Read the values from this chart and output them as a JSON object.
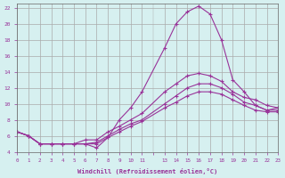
{
  "xlabel": "Windchill (Refroidissement éolien,°C)",
  "background_color": "#d6f0f0",
  "line_color": "#993399",
  "grid_color": "#aaaaaa",
  "xlim": [
    0,
    23
  ],
  "ylim": [
    4,
    22.5
  ],
  "xticks": [
    0,
    1,
    2,
    3,
    4,
    5,
    6,
    7,
    8,
    9,
    10,
    11,
    13,
    14,
    15,
    16,
    17,
    18,
    19,
    20,
    21,
    22,
    23
  ],
  "yticks": [
    4,
    6,
    8,
    10,
    12,
    14,
    16,
    18,
    20,
    22
  ],
  "curve1_x": [
    0,
    1,
    2,
    3,
    4,
    5,
    6,
    7,
    8,
    9,
    10,
    11,
    13,
    14,
    15,
    16,
    17,
    18,
    19,
    20,
    21,
    22,
    23
  ],
  "curve1_y": [
    6.5,
    6.0,
    5.0,
    5.0,
    5.0,
    5.0,
    5.0,
    4.5,
    5.8,
    8.0,
    9.5,
    11.5,
    17.0,
    20.0,
    21.5,
    22.2,
    21.2,
    18.0,
    13.0,
    11.5,
    9.8,
    9.2,
    9.5
  ],
  "curve2_x": [
    0,
    1,
    2,
    3,
    4,
    5,
    6,
    7,
    8,
    9,
    10,
    11,
    13,
    14,
    15,
    16,
    17,
    18,
    19,
    20,
    21,
    22,
    23
  ],
  "curve2_y": [
    6.5,
    6.0,
    5.0,
    5.0,
    5.0,
    5.0,
    5.5,
    5.5,
    6.5,
    7.2,
    8.0,
    8.8,
    11.5,
    12.5,
    13.5,
    13.8,
    13.5,
    12.8,
    11.5,
    10.8,
    10.5,
    9.8,
    9.5
  ],
  "curve3_x": [
    0,
    1,
    2,
    3,
    4,
    5,
    6,
    7,
    8,
    9,
    10,
    11,
    13,
    14,
    15,
    16,
    17,
    18,
    19,
    20,
    21,
    22,
    23
  ],
  "curve3_y": [
    6.5,
    6.0,
    5.0,
    5.0,
    5.0,
    5.0,
    5.0,
    5.2,
    6.0,
    6.8,
    7.5,
    8.0,
    10.0,
    11.0,
    12.0,
    12.5,
    12.5,
    12.0,
    11.2,
    10.2,
    9.8,
    9.2,
    9.2
  ],
  "curve4_x": [
    0,
    1,
    2,
    3,
    4,
    5,
    6,
    7,
    8,
    9,
    10,
    11,
    13,
    14,
    15,
    16,
    17,
    18,
    19,
    20,
    21,
    22,
    23
  ],
  "curve4_y": [
    6.5,
    6.0,
    5.0,
    5.0,
    5.0,
    5.0,
    5.0,
    5.0,
    5.8,
    6.5,
    7.2,
    7.8,
    9.5,
    10.2,
    11.0,
    11.5,
    11.5,
    11.2,
    10.5,
    9.8,
    9.2,
    9.0,
    9.0
  ]
}
